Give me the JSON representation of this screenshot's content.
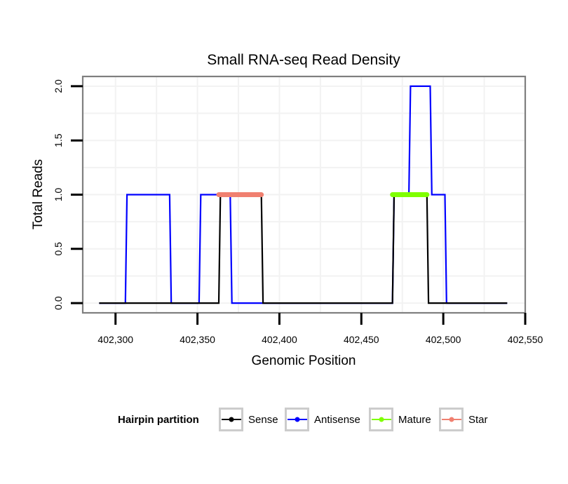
{
  "chart_data": {
    "type": "line",
    "title": "Small RNA-seq Read Density",
    "xlabel": "Genomic Position",
    "ylabel": "Total Reads",
    "xlim": [
      402280,
      402550
    ],
    "ylim": [
      -0.09,
      2.09
    ],
    "xticks": [
      402300,
      402350,
      402400,
      402450,
      402500,
      402550
    ],
    "xtick_labels": [
      "402,300",
      "402,350",
      "402,400",
      "402,450",
      "402,500",
      "402,550"
    ],
    "yticks": [
      0,
      0.5,
      1,
      1.5,
      2
    ],
    "ytick_labels": [
      "0.0",
      "0.5",
      "1.0",
      "1.5",
      "2.0"
    ],
    "grid": true,
    "legend_position": "bottom",
    "legend_title": "Hairpin partition",
    "series": [
      {
        "name": "Sense",
        "color": "#000000",
        "x": [
          402290,
          402363,
          402364,
          402389,
          402390,
          402469,
          402470,
          402490,
          402491,
          402539
        ],
        "y": [
          0,
          0,
          1,
          1,
          0,
          0,
          1,
          1,
          0,
          0
        ]
      },
      {
        "name": "Antisense",
        "color": "#0000ff",
        "x": [
          402290,
          402306,
          402307,
          402333,
          402334,
          402351,
          402352,
          402370,
          402371,
          402469,
          402470,
          402479,
          402480,
          402492,
          402493,
          402501,
          402502,
          402539
        ],
        "y": [
          0,
          0,
          1,
          1,
          0,
          0,
          1,
          1,
          0,
          0,
          1,
          1,
          2,
          2,
          1,
          1,
          0,
          0
        ]
      },
      {
        "name": "Mature",
        "color": "#7fff00",
        "x": [
          402469,
          402490
        ],
        "y": [
          1,
          1
        ]
      },
      {
        "name": "Star",
        "color": "#f08070",
        "x": [
          402363,
          402389
        ],
        "y": [
          1,
          1
        ]
      }
    ]
  }
}
